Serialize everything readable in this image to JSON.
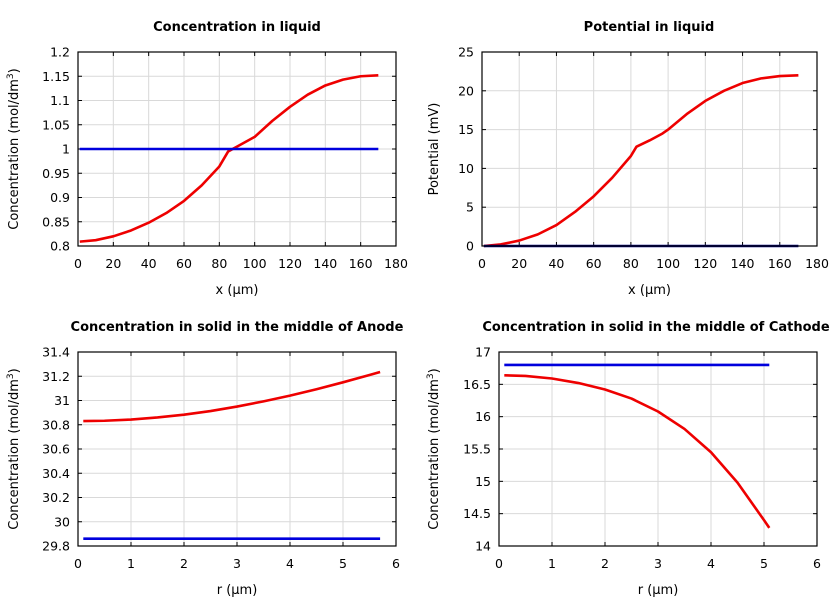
{
  "chart_data": [
    {
      "type": "line",
      "title": "Concentration in liquid",
      "xlabel": "x (µm)",
      "ylabel": "Concentration (mol/dm",
      "ylabel_sup": "3",
      "ylabel_tail": ")",
      "xlim": [
        0,
        180
      ],
      "ylim": [
        0.8,
        1.2
      ],
      "xticks": [
        0,
        20,
        40,
        60,
        80,
        100,
        120,
        140,
        160,
        180
      ],
      "xtick_labels": [
        "0",
        "20",
        "40",
        "60",
        "80",
        "100",
        "120",
        "140",
        "160",
        "180"
      ],
      "yticks": [
        0.8,
        0.85,
        0.9,
        0.95,
        1,
        1.05,
        1.1,
        1.15,
        1.2
      ],
      "ytick_labels": [
        "0.8",
        "0.85",
        "0.9",
        "0.95",
        "1",
        "1.05",
        "1.1",
        "1.15",
        "1.2"
      ],
      "series": [
        {
          "name": "red",
          "color": "#ee0000",
          "x": [
            1,
            10,
            20,
            30,
            40,
            50,
            60,
            70,
            80,
            85,
            90,
            100,
            110,
            120,
            130,
            140,
            150,
            160,
            170
          ],
          "y": [
            0.809,
            0.812,
            0.82,
            0.832,
            0.848,
            0.868,
            0.893,
            0.925,
            0.964,
            0.995,
            1.005,
            1.025,
            1.058,
            1.087,
            1.112,
            1.131,
            1.143,
            1.15,
            1.152
          ]
        },
        {
          "name": "blue",
          "color": "#0000dd",
          "x": [
            1,
            170
          ],
          "y": [
            1.0,
            1.0
          ]
        }
      ]
    },
    {
      "type": "line",
      "title": "Potential in liquid",
      "xlabel": "x (µm)",
      "ylabel": "Potential (mV)",
      "ylabel_sup": "",
      "ylabel_tail": "",
      "xlim": [
        0,
        180
      ],
      "ylim": [
        0,
        25
      ],
      "xticks": [
        0,
        20,
        40,
        60,
        80,
        100,
        120,
        140,
        160,
        180
      ],
      "xtick_labels": [
        "0",
        "20",
        "40",
        "60",
        "80",
        "100",
        "120",
        "140",
        "160",
        "180"
      ],
      "yticks": [
        0,
        5,
        10,
        15,
        20,
        25
      ],
      "ytick_labels": [
        "0",
        "5",
        "10",
        "15",
        "20",
        "25"
      ],
      "series": [
        {
          "name": "red",
          "color": "#ee0000",
          "x": [
            1,
            10,
            20,
            30,
            40,
            50,
            60,
            70,
            80,
            83,
            90,
            97,
            100,
            110,
            120,
            130,
            140,
            150,
            160,
            170
          ],
          "y": [
            0.0,
            0.2,
            0.7,
            1.5,
            2.7,
            4.4,
            6.4,
            8.8,
            11.6,
            12.8,
            13.6,
            14.5,
            15.0,
            17.0,
            18.7,
            20.0,
            21.0,
            21.6,
            21.9,
            22.0
          ]
        },
        {
          "name": "navy",
          "color": "#000080",
          "x": [
            1,
            170
          ],
          "y": [
            0.0,
            0.0
          ]
        }
      ]
    },
    {
      "type": "line",
      "title": "Concentration in solid in the middle of Anode",
      "xlabel": "r (µm)",
      "ylabel": "Concentration (mol/dm",
      "ylabel_sup": "3",
      "ylabel_tail": ")",
      "xlim": [
        0,
        6
      ],
      "ylim": [
        29.8,
        31.4
      ],
      "xticks": [
        0,
        1,
        2,
        3,
        4,
        5,
        6
      ],
      "xtick_labels": [
        "0",
        "1",
        "2",
        "3",
        "4",
        "5",
        "6"
      ],
      "yticks": [
        29.8,
        30.0,
        30.2,
        30.4,
        30.6,
        30.8,
        31.0,
        31.2,
        31.4
      ],
      "ytick_labels": [
        "29.8",
        "30",
        "30.2",
        "30.4",
        "30.6",
        "30.8",
        "31",
        "31.2",
        "31.4"
      ],
      "series": [
        {
          "name": "red",
          "color": "#ee0000",
          "x": [
            0.1,
            0.5,
            1,
            1.5,
            2,
            2.5,
            3,
            3.5,
            4,
            4.5,
            5,
            5.5,
            5.7
          ],
          "y": [
            30.83,
            30.833,
            30.843,
            30.86,
            30.883,
            30.913,
            30.95,
            30.993,
            31.04,
            31.093,
            31.15,
            31.21,
            31.235
          ]
        },
        {
          "name": "blue",
          "color": "#0000dd",
          "x": [
            0.1,
            5.7
          ],
          "y": [
            29.86,
            29.86
          ]
        }
      ]
    },
    {
      "type": "line",
      "title": "Concentration in solid in the middle of Cathode",
      "xlabel": "r (µm)",
      "ylabel": "Concentration (mol/dm",
      "ylabel_sup": "3",
      "ylabel_tail": ")",
      "xlim": [
        0,
        6
      ],
      "ylim": [
        14,
        17
      ],
      "xticks": [
        0,
        1,
        2,
        3,
        4,
        5,
        6
      ],
      "xtick_labels": [
        "0",
        "1",
        "2",
        "3",
        "4",
        "5",
        "6"
      ],
      "yticks": [
        14,
        14.5,
        15,
        15.5,
        16,
        16.5,
        17
      ],
      "ytick_labels": [
        "14",
        "14.5",
        "15",
        "15.5",
        "16",
        "16.5",
        "17"
      ],
      "series": [
        {
          "name": "red",
          "color": "#ee0000",
          "x": [
            0.1,
            0.5,
            1,
            1.5,
            2,
            2.5,
            3,
            3.5,
            4,
            4.5,
            5,
            5.1
          ],
          "y": [
            16.64,
            16.63,
            16.59,
            16.52,
            16.42,
            16.28,
            16.08,
            15.81,
            15.45,
            14.98,
            14.4,
            14.28
          ]
        },
        {
          "name": "blue",
          "color": "#0000dd",
          "x": [
            0.1,
            5.1
          ],
          "y": [
            16.8,
            16.8
          ]
        }
      ]
    }
  ]
}
